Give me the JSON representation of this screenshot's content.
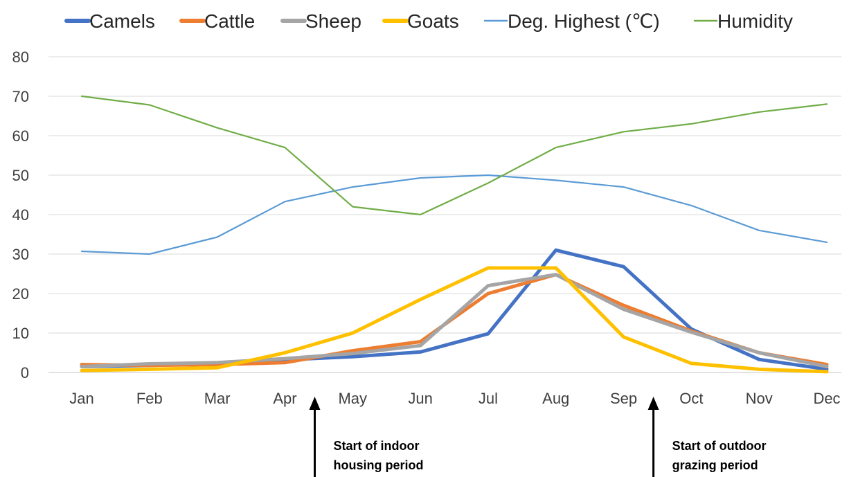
{
  "chart_data": {
    "type": "line",
    "categories": [
      "Jan",
      "Feb",
      "Mar",
      "Apr",
      "May",
      "Jun",
      "Jul",
      "Aug",
      "Sep",
      "Oct",
      "Nov",
      "Dec"
    ],
    "ylim": [
      0,
      80
    ],
    "yticks": [
      0,
      10,
      20,
      30,
      40,
      50,
      60,
      70,
      80
    ],
    "grid": true,
    "legend_position": "top",
    "series": [
      {
        "name": "Camels",
        "color": "#4472C4",
        "width": "thick",
        "values": [
          1.5,
          1.8,
          2.2,
          3.2,
          4,
          5.2,
          9.8,
          31,
          26.8,
          11,
          3.3,
          0.8
        ]
      },
      {
        "name": "Cattle",
        "color": "#ED7D31",
        "width": "thick",
        "values": [
          2,
          1.8,
          2,
          2.5,
          5.5,
          7.8,
          20,
          24.8,
          17,
          10.5,
          5,
          2
        ]
      },
      {
        "name": "Sheep",
        "color": "#A5A5A5",
        "width": "thick",
        "values": [
          1.5,
          2.2,
          2.5,
          3.5,
          4.8,
          6.8,
          22,
          24.8,
          16,
          10.2,
          5,
          1.5
        ]
      },
      {
        "name": "Goats",
        "color": "#FFC000",
        "width": "thick",
        "values": [
          0.5,
          0.8,
          1.2,
          5,
          10,
          18.5,
          26.5,
          26.5,
          9,
          2.3,
          0.8,
          0.2
        ]
      },
      {
        "name": "Deg. Highest (℃)",
        "color": "#5B9BD5",
        "width": "thin",
        "values": [
          30.7,
          30,
          34.3,
          43.3,
          47,
          49.3,
          50,
          48.7,
          47,
          42.3,
          36,
          33
        ]
      },
      {
        "name": "Humidity",
        "color": "#70AD47",
        "width": "thin",
        "values": [
          70,
          67.8,
          62,
          57,
          42,
          40,
          48,
          57,
          61,
          63,
          66,
          68
        ]
      }
    ],
    "annotations": [
      {
        "text_lines": [
          "Start of indoor",
          "housing  period"
        ],
        "between": [
          "Apr",
          "May"
        ]
      },
      {
        "text_lines": [
          "Start of outdoor",
          "grazing period"
        ],
        "between": [
          "Sep",
          "Oct"
        ]
      }
    ]
  }
}
